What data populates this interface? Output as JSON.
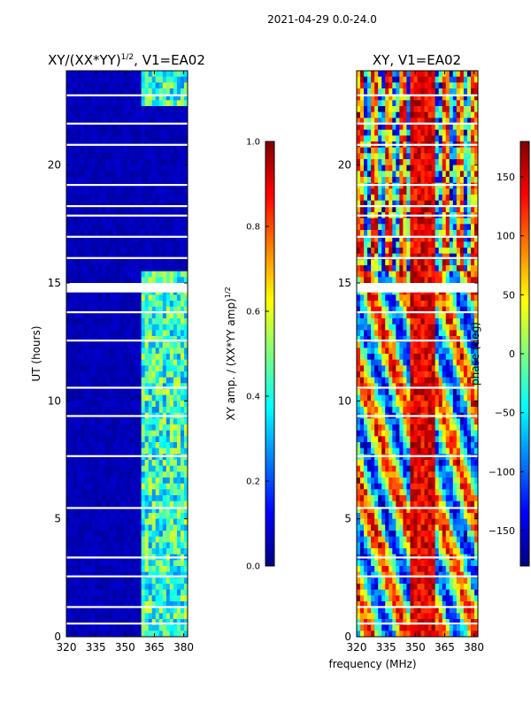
{
  "suptitle": "2021-04-29 0.0-24.0",
  "chart_data": [
    {
      "type": "heatmap",
      "title_main": "XY/(XX*YY)",
      "title_exp": "1/2",
      "title_rest": ", V1=EA02",
      "xlabel": "",
      "ylabel": "UT (hours)",
      "xlim": [
        320,
        382
      ],
      "ylim": [
        0,
        24
      ],
      "xticks": [
        320,
        335,
        350,
        365,
        380
      ],
      "yticks": [
        0,
        5,
        10,
        15,
        20
      ],
      "colorbar": {
        "label_main": "XY amp. / (XX*YY amp)",
        "label_exp": "1/2",
        "range": [
          0.0,
          1.0
        ],
        "ticks": [
          "0.0",
          "0.2",
          "0.4",
          "0.6",
          "0.8",
          "1.0"
        ],
        "colormap": "jet"
      },
      "description_values": {
        "background_level": 0.05,
        "active_band_MHz": [
          358,
          382
        ],
        "active_band_level": 0.4,
        "gap_band_UT": [
          14.6,
          15.0
        ]
      }
    },
    {
      "type": "heatmap",
      "title": "XY, V1=EA02",
      "xlabel": "frequency (MHz)",
      "ylabel": "",
      "xlim": [
        320,
        382
      ],
      "ylim": [
        0,
        24
      ],
      "xticks": [
        320,
        335,
        350,
        365,
        380
      ],
      "yticks": [
        0,
        5,
        10,
        15,
        20
      ],
      "colorbar": {
        "label": "phase (deg)",
        "range": [
          -180,
          180
        ],
        "ticks": [
          "150",
          "100",
          "50",
          "0",
          "−50",
          "−100",
          "−150"
        ],
        "tick_values": [
          150,
          100,
          50,
          0,
          -50,
          -100,
          -150
        ],
        "colormap": "jet"
      },
      "description_values": {
        "stable_phase_band_MHz": [
          348,
          360
        ],
        "stable_phase_deg": 170
      }
    }
  ],
  "colors": {
    "jet_0": "#00007f",
    "jet_1": "#0000ff",
    "jet_2": "#007fff",
    "jet_3": "#00ffff",
    "jet_4": "#7fff7f",
    "jet_5": "#ffff00",
    "jet_6": "#ff7f00",
    "jet_7": "#ff0000",
    "jet_8": "#7f0000"
  }
}
